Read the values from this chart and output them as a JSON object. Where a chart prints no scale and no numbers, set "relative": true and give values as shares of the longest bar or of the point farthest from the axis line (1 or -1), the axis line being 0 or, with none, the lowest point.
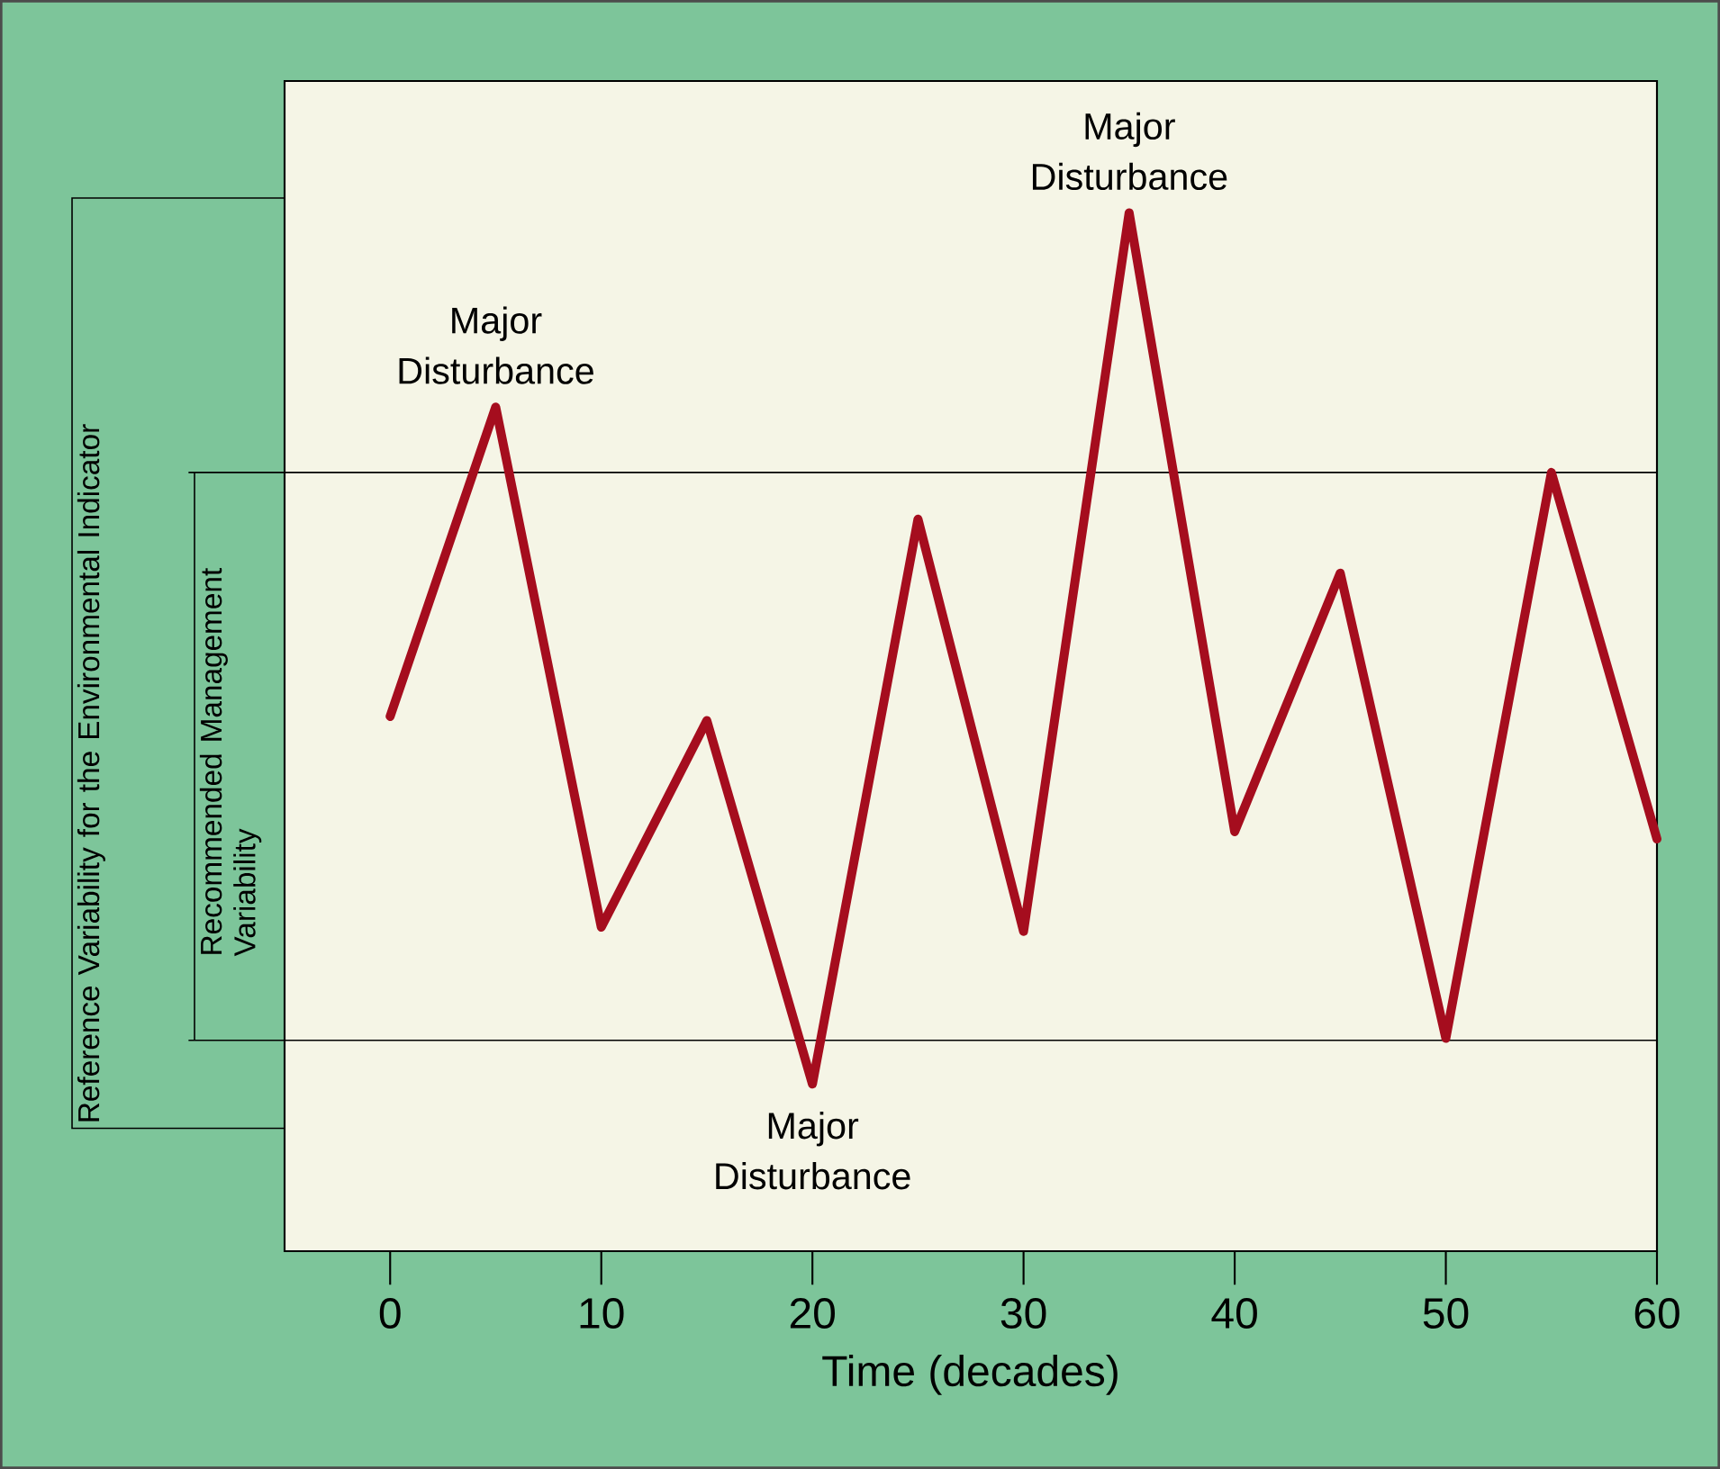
{
  "chart_data": {
    "type": "line",
    "relative": true,
    "xlabel": "Time (decades)",
    "color": "#a50d1e",
    "x": [
      0,
      5,
      10,
      15,
      20,
      25,
      30,
      35,
      40,
      45,
      50,
      55,
      60
    ],
    "values": [
      0.515,
      0.813,
      0.312,
      0.511,
      0.161,
      0.705,
      0.308,
      1,
      0.404,
      0.653,
      0.205,
      0.75,
      0.397
    ],
    "xlim": [
      -5,
      60
    ],
    "xticks": [
      0,
      10,
      20,
      30,
      40,
      50,
      60
    ],
    "ref_lines": [
      {
        "axis": "y",
        "value": 0.75
      },
      {
        "axis": "y",
        "value": 0.203
      }
    ],
    "annotations": [
      "Reference  Variability for the Environmental Indicator",
      "Recommended Management Variability",
      {
        "text": "Major Disturbance",
        "x": 5,
        "y": 0.813
      },
      {
        "text": "Major Disturbance",
        "x": 35,
        "y": 1
      },
      {
        "text": "Major Disturbance",
        "x": 20,
        "y": 0.161
      }
    ],
    "grid": false,
    "marker": "none",
    "line_style": "solid"
  }
}
